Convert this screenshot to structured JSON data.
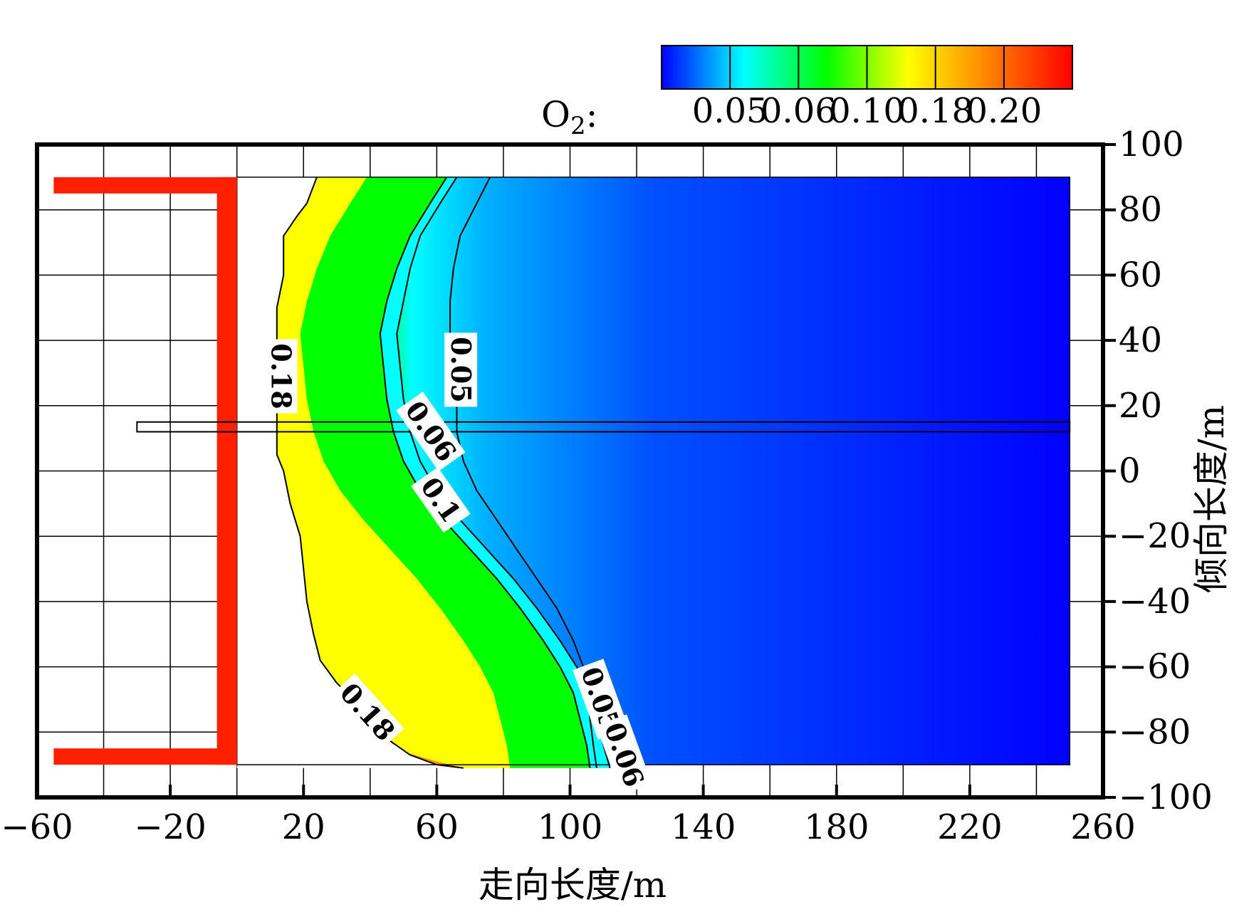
{
  "chart_data": {
    "type": "heatmap",
    "title": "",
    "xlabel": "走向长度/m",
    "ylabel": "倾向长度/m",
    "xlim": [
      -60,
      260
    ],
    "ylim": [
      -100,
      100
    ],
    "x_ticks": [
      "−60",
      "−20",
      "20",
      "60",
      "100",
      "140",
      "180",
      "220",
      "260"
    ],
    "y_ticks": [
      "100",
      "80",
      "60",
      "40",
      "20",
      "0",
      "−20",
      "−40",
      "−60",
      "−80",
      "−100"
    ],
    "grid": true,
    "colorbar": {
      "label": "O2:",
      "label_main": "O",
      "label_sub": "2",
      "label_suffix": ":",
      "tick_labels": [
        "0.05",
        "0.06",
        "0.10",
        "0.18",
        "0.20"
      ],
      "colors": [
        "#0000ff",
        "#00ffff",
        "#00ff00",
        "#ffff00",
        "#ff8000",
        "#ff0000"
      ]
    },
    "contours": [
      {
        "level": 0.18,
        "label": "0.18",
        "points": [
          [
            24,
            90
          ],
          [
            21,
            82
          ],
          [
            18,
            78
          ],
          [
            14,
            72
          ],
          [
            14,
            60
          ],
          [
            12,
            50
          ],
          [
            12,
            40
          ],
          [
            11,
            30
          ],
          [
            12,
            20
          ],
          [
            12,
            10
          ],
          [
            12,
            5
          ],
          [
            14,
            0
          ],
          [
            16,
            -10
          ],
          [
            19,
            -20
          ],
          [
            20,
            -30
          ],
          [
            21,
            -40
          ],
          [
            23,
            -50
          ],
          [
            25,
            -58
          ],
          [
            30,
            -65
          ],
          [
            35,
            -70
          ],
          [
            40,
            -76
          ],
          [
            45,
            -82
          ],
          [
            52,
            -87
          ],
          [
            60,
            -90
          ],
          [
            68,
            -91
          ]
        ]
      },
      {
        "level": 0.1,
        "label": "0.1",
        "points": [
          [
            63,
            90
          ],
          [
            58,
            82
          ],
          [
            52,
            72
          ],
          [
            48,
            62
          ],
          [
            45,
            52
          ],
          [
            43,
            42
          ],
          [
            44,
            32
          ],
          [
            45,
            22
          ],
          [
            47,
            12
          ],
          [
            50,
            3
          ],
          [
            55,
            -6
          ],
          [
            62,
            -15
          ],
          [
            70,
            -24
          ],
          [
            78,
            -33
          ],
          [
            85,
            -42
          ],
          [
            92,
            -52
          ],
          [
            97,
            -60
          ],
          [
            101,
            -68
          ],
          [
            103,
            -76
          ],
          [
            105,
            -84
          ],
          [
            106,
            -91
          ]
        ]
      },
      {
        "level": 0.06,
        "label": "0.06",
        "points": [
          [
            66,
            90
          ],
          [
            61,
            82
          ],
          [
            55,
            72
          ],
          [
            52,
            62
          ],
          [
            50,
            52
          ],
          [
            48,
            42
          ],
          [
            49,
            32
          ],
          [
            50,
            22
          ],
          [
            52,
            12
          ],
          [
            55,
            3
          ],
          [
            60,
            -6
          ],
          [
            67,
            -15
          ],
          [
            75,
            -24
          ],
          [
            83,
            -33
          ],
          [
            90,
            -42
          ],
          [
            97,
            -52
          ],
          [
            102,
            -60
          ],
          [
            106,
            -68
          ],
          [
            108,
            -76
          ],
          [
            110,
            -84
          ],
          [
            112,
            -91
          ]
        ]
      },
      {
        "level": 0.05,
        "label": "0.05",
        "points": [
          [
            76,
            90
          ],
          [
            72,
            82
          ],
          [
            67,
            72
          ],
          [
            65,
            62
          ],
          [
            64,
            52
          ],
          [
            64,
            42
          ],
          [
            65,
            32
          ],
          [
            66,
            22
          ],
          [
            66,
            12
          ],
          [
            68,
            3
          ],
          [
            72,
            -6
          ],
          [
            78,
            -15
          ],
          [
            84,
            -24
          ],
          [
            90,
            -33
          ],
          [
            96,
            -42
          ],
          [
            101,
            -52
          ],
          [
            104,
            -60
          ],
          [
            105,
            -68
          ],
          [
            106,
            -76
          ],
          [
            107,
            -84
          ],
          [
            108,
            -91
          ]
        ]
      }
    ],
    "contour_labels": [
      {
        "text": "0.18",
        "x": 13,
        "y": 29,
        "rotation": 90
      },
      {
        "text": "0.05",
        "x": 67,
        "y": 31,
        "rotation": 90
      },
      {
        "text": "0.06",
        "x": 58,
        "y": 12,
        "rotation": 55
      },
      {
        "text": "0.1",
        "x": 61,
        "y": -9,
        "rotation": 55
      },
      {
        "text": "0.18",
        "x": 39,
        "y": -74,
        "rotation": 48
      },
      {
        "text": "0.05",
        "x": 109,
        "y": -70,
        "rotation": 70
      },
      {
        "text": "0.06",
        "x": 116,
        "y": -87,
        "rotation": 70
      }
    ]
  }
}
